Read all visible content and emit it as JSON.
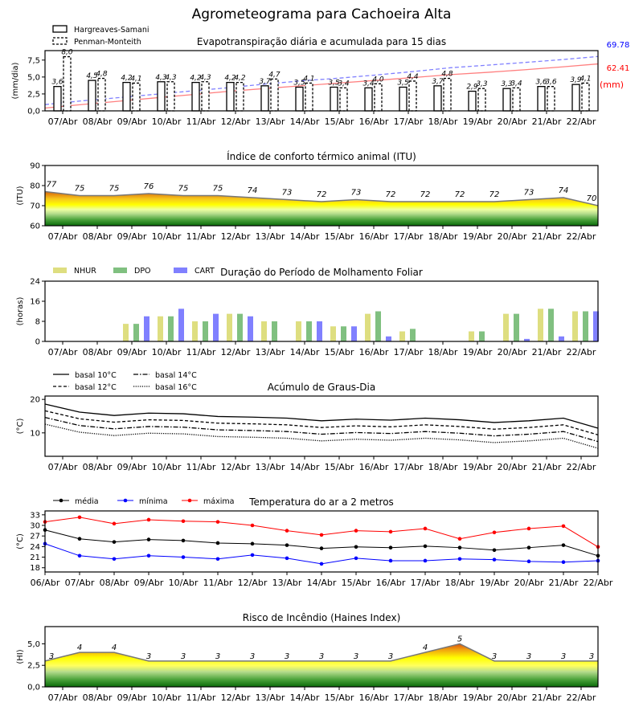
{
  "title": "Agrometeograma para Cachoeira Alta",
  "colors": {
    "blue": "#0000ff",
    "red": "#ff0000",
    "nhur": "#dede80",
    "dpo": "#80c080",
    "cart": "#8080ff"
  },
  "days16": [
    "07/Abr",
    "08/Abr",
    "09/Abr",
    "10/Abr",
    "11/Abr",
    "12/Abr",
    "13/Abr",
    "14/Abr",
    "15/Abr",
    "16/Abr",
    "17/Abr",
    "18/Abr",
    "19/Abr",
    "20/Abr",
    "21/Abr",
    "22/Abr"
  ],
  "days17": [
    "06/Abr",
    "07/Abr",
    "08/Abr",
    "09/Abr",
    "10/Abr",
    "11/Abr",
    "12/Abr",
    "13/Abr",
    "14/Abr",
    "15/Abr",
    "16/Abr",
    "17/Abr",
    "18/Abr",
    "19/Abr",
    "20/Abr",
    "21/Abr",
    "22/Abr"
  ],
  "chart_data": [
    {
      "id": "et",
      "type": "bar",
      "title": "Evapotranspiração diária e acumulada para 15 dias",
      "ylabel": "(mm/dia)",
      "ylim": [
        0,
        8.9
      ],
      "yticks": [
        "0,0",
        "2,5",
        "5,0",
        "7,5"
      ],
      "ytick_values": [
        0,
        2.5,
        5,
        7.5
      ],
      "series": [
        {
          "name": "Hargreaves-Samani",
          "values": [
            3.6,
            4.5,
            4.2,
            4.3,
            4.2,
            4.2,
            3.7,
            3.5,
            3.5,
            3.4,
            3.5,
            3.7,
            2.9,
            3.3,
            3.6,
            3.9
          ],
          "labels": [
            "3,6",
            "4,5",
            "4,2",
            "4,3",
            "4,2",
            "4,2",
            "3,7",
            "3,5",
            "3,5",
            "3,4",
            "3,5",
            "3,7",
            "2,9",
            "3,3",
            "3,6",
            "3,9"
          ]
        },
        {
          "name": "Penman-Monteith",
          "values": [
            8.0,
            4.8,
            4.1,
            4.3,
            4.3,
            4.2,
            4.7,
            4.1,
            3.4,
            4.0,
            4.4,
            4.8,
            3.3,
            3.4,
            3.6,
            4.1
          ],
          "labels": [
            "8,0",
            "4,8",
            "4,1",
            "4,3",
            "4,3",
            "4,2",
            "4,7",
            "4,1",
            "3,4",
            "4,0",
            "4,4",
            "4,8",
            "3,3",
            "3,4",
            "3,6",
            "4,1"
          ]
        }
      ],
      "accumulated": {
        "unit": "(mm)",
        "pm_total": "69.78",
        "hs_total": "62.41",
        "ylim": [
          0,
          77
        ]
      }
    },
    {
      "id": "itu",
      "type": "area",
      "title": "Índice de conforto térmico animal (ITU)",
      "ylabel": "(ITU)",
      "ylim": [
        60,
        90
      ],
      "yticks": [
        "60",
        "70",
        "80",
        "90"
      ],
      "ytick_values": [
        60,
        70,
        80,
        90
      ],
      "values": [
        77,
        75,
        75,
        76,
        75,
        75,
        74,
        73,
        72,
        73,
        72,
        72,
        72,
        72,
        73,
        74,
        70
      ]
    },
    {
      "id": "molh",
      "type": "bar",
      "title": "Duração do Período de Molhamento Foliar",
      "ylabel": "(horas)",
      "ylim": [
        0,
        24
      ],
      "yticks": [
        "0",
        "8",
        "16",
        "24"
      ],
      "ytick_values": [
        0,
        8,
        16,
        24
      ],
      "series": [
        {
          "name": "NHUR",
          "values": [
            0,
            0,
            7,
            10,
            8,
            11,
            8,
            8,
            6,
            11,
            4,
            0,
            4,
            11,
            13,
            12
          ]
        },
        {
          "name": "DPO",
          "values": [
            0,
            0,
            7,
            10,
            8,
            11,
            8,
            8,
            6,
            12,
            5,
            0,
            4,
            11,
            13,
            12
          ]
        },
        {
          "name": "CART",
          "values": [
            0,
            0,
            10,
            13,
            11,
            10,
            0,
            8,
            6,
            2,
            0,
            0,
            0,
            1,
            2,
            12
          ]
        }
      ]
    },
    {
      "id": "graus",
      "type": "line",
      "title": "Acúmulo de Graus-Dia",
      "ylabel": "(°C)",
      "ylim": [
        3,
        21
      ],
      "yticks": [
        "10",
        "20"
      ],
      "ytick_values": [
        10,
        20
      ],
      "series": [
        {
          "name": "basal 10°C",
          "values": [
            18.6,
            16.2,
            15.2,
            15.9,
            15.7,
            14.9,
            14.7,
            14.4,
            13.6,
            14.1,
            13.8,
            14.4,
            13.9,
            13.1,
            13.6,
            14.4,
            11.4
          ]
        },
        {
          "name": "basal 12°C",
          "values": [
            16.6,
            14.2,
            13.2,
            13.9,
            13.7,
            12.9,
            12.7,
            12.4,
            11.6,
            12.1,
            11.8,
            12.4,
            11.9,
            11.1,
            11.6,
            12.4,
            9.4
          ]
        },
        {
          "name": "basal 14°C",
          "values": [
            14.6,
            12.2,
            11.2,
            11.9,
            11.7,
            10.9,
            10.7,
            10.4,
            9.6,
            10.1,
            9.8,
            10.4,
            9.9,
            9.1,
            9.6,
            10.4,
            7.4
          ]
        },
        {
          "name": "basal 16°C",
          "values": [
            12.6,
            10.2,
            9.2,
            9.9,
            9.7,
            8.9,
            8.7,
            8.4,
            7.6,
            8.1,
            7.8,
            8.4,
            7.9,
            7.1,
            7.6,
            8.4,
            5.4
          ]
        }
      ]
    },
    {
      "id": "temp",
      "type": "line",
      "title": "Temperatura do ar a 2 metros",
      "ylabel": "(°C)",
      "ylim": [
        16.8,
        34.1
      ],
      "yticks": [
        "18",
        "21",
        "24",
        "27",
        "30",
        "33"
      ],
      "ytick_values": [
        18,
        21,
        24,
        27,
        30,
        33
      ],
      "series": [
        {
          "name": "média",
          "values": [
            28.7,
            26.2,
            25.3,
            26.0,
            25.7,
            25.0,
            24.8,
            24.4,
            23.5,
            23.9,
            23.7,
            24.1,
            23.7,
            23.0,
            23.7,
            24.4,
            21.4
          ]
        },
        {
          "name": "mínima",
          "values": [
            24.8,
            21.4,
            20.5,
            21.4,
            21.0,
            20.5,
            21.6,
            20.7,
            19.1,
            20.7,
            20.0,
            20.0,
            20.5,
            20.3,
            19.8,
            19.6,
            20.0
          ]
        },
        {
          "name": "máxima",
          "values": [
            31.0,
            32.3,
            30.5,
            31.6,
            31.2,
            31.0,
            30.0,
            28.5,
            27.3,
            28.5,
            28.2,
            29.1,
            26.2,
            28.0,
            29.1,
            29.8,
            23.9
          ]
        }
      ]
    },
    {
      "id": "haines",
      "type": "area",
      "title": "Risco de Incêndio (Haines Index)",
      "ylabel": "(HI)",
      "ylim": [
        0,
        7
      ],
      "yticks": [
        "0,0",
        "2,5",
        "5,0"
      ],
      "ytick_values": [
        0,
        2.5,
        5
      ],
      "values": [
        3,
        4,
        4,
        3,
        3,
        3,
        3,
        3,
        3,
        3,
        3,
        4,
        5,
        3,
        3,
        3,
        3
      ]
    }
  ]
}
